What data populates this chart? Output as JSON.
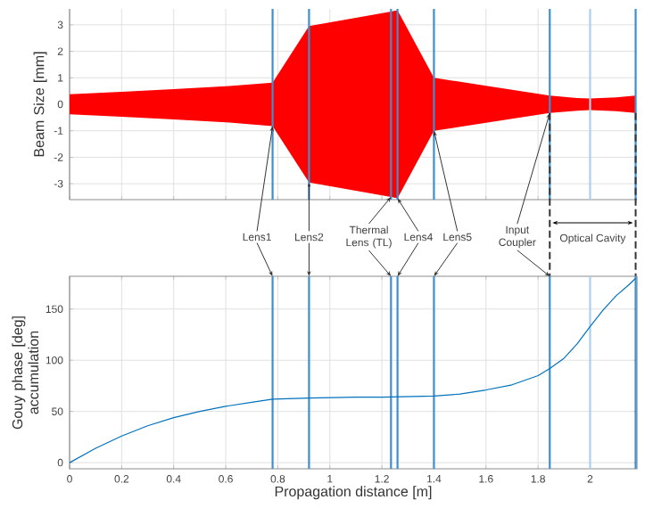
{
  "chart_data": [
    {
      "type": "area",
      "ylabel": "Beam Size [mm]",
      "x": [
        0,
        0.2,
        0.4,
        0.6,
        0.78,
        0.92,
        1.235,
        1.26,
        1.4,
        1.6,
        1.845,
        1.95,
        2.0,
        2.1,
        2.175
      ],
      "series": [
        {
          "color": "#ff0000",
          "values": [
            0.38,
            0.47,
            0.57,
            0.68,
            0.82,
            2.95,
            3.5,
            3.55,
            1.0,
            0.7,
            0.33,
            0.24,
            0.22,
            0.26,
            0.33
          ]
        },
        {
          "color": "#ff0000",
          "values": [
            -0.38,
            -0.47,
            -0.57,
            -0.68,
            -0.82,
            -2.95,
            -3.5,
            -3.55,
            -1.0,
            -0.7,
            -0.33,
            -0.24,
            -0.22,
            -0.26,
            -0.33
          ]
        }
      ],
      "xlim": [
        0,
        2.18
      ],
      "xticks": [
        0,
        0.2,
        0.4,
        0.6,
        0.8,
        1,
        1.2,
        1.4,
        1.6,
        1.8,
        2
      ],
      "ylim": [
        -3.6,
        3.6
      ],
      "yticks": [
        -3,
        -2,
        -1,
        0,
        1,
        2,
        3
      ],
      "tick_labels": "y",
      "grid": true,
      "ref_lines": [
        {
          "axis": "x",
          "value": 0.78,
          "color": "#3d8fd1"
        },
        {
          "axis": "x",
          "value": 0.92,
          "color": "#3d8fd1"
        },
        {
          "axis": "x",
          "value": 1.235,
          "color": "#3d8fd1"
        },
        {
          "axis": "x",
          "value": 1.26,
          "color": "#3d8fd1"
        },
        {
          "axis": "x",
          "value": 1.4,
          "color": "#3d8fd1"
        },
        {
          "axis": "x",
          "value": 1.845,
          "color": "#3d8fd1"
        },
        {
          "axis": "x",
          "value": 2.0,
          "color": "#a9d0ee"
        },
        {
          "axis": "x",
          "value": 2.175,
          "color": "#3d8fd1"
        },
        {
          "axis": "x",
          "value": 1.845,
          "color": "#333333",
          "line_style": "dashed"
        },
        {
          "axis": "x",
          "value": 2.175,
          "color": "#333333",
          "line_style": "dashed"
        }
      ]
    },
    {
      "type": "line",
      "xlabel": "Propagation distance [m]",
      "ylabel": "Gouy phase [deg] accumulation",
      "x": [
        0,
        0.1,
        0.2,
        0.3,
        0.4,
        0.5,
        0.6,
        0.7,
        0.78,
        0.92,
        1.1,
        1.2,
        1.4,
        1.5,
        1.6,
        1.7,
        1.8,
        1.845,
        1.9,
        1.95,
        2.0,
        2.05,
        2.1,
        2.15,
        2.175
      ],
      "series": [
        {
          "color": "#0072bd",
          "values": [
            0,
            14,
            26,
            36,
            44,
            50,
            55,
            59,
            62,
            63,
            64,
            64,
            65,
            67,
            71,
            76,
            85,
            92,
            102,
            116,
            133,
            149,
            163,
            174,
            180
          ]
        }
      ],
      "xlim": [
        0,
        2.18
      ],
      "xticks": [
        0,
        0.2,
        0.4,
        0.6,
        0.8,
        1,
        1.2,
        1.4,
        1.6,
        1.8,
        2
      ],
      "ylim": [
        -6,
        182
      ],
      "yticks": [
        0,
        50,
        100,
        150
      ],
      "grid": true,
      "ref_lines": [
        {
          "axis": "x",
          "value": 0.78,
          "color": "#3d8fd1",
          "label": "Lens1"
        },
        {
          "axis": "x",
          "value": 0.92,
          "color": "#3d8fd1",
          "label": "Lens2"
        },
        {
          "axis": "x",
          "value": 1.235,
          "color": "#3d8fd1",
          "label": "Thermal Lens (TL)"
        },
        {
          "axis": "x",
          "value": 1.26,
          "color": "#3d8fd1",
          "label": "Lens4"
        },
        {
          "axis": "x",
          "value": 1.4,
          "color": "#3d8fd1",
          "label": "Lens5"
        },
        {
          "axis": "x",
          "value": 1.845,
          "color": "#3d8fd1",
          "label": "Input Coupler"
        },
        {
          "axis": "x",
          "value": 2.0,
          "color": "#a9d0ee"
        },
        {
          "axis": "x",
          "value": 2.175,
          "color": "#3d8fd1"
        }
      ],
      "annotations": [
        "Optical Cavity"
      ]
    }
  ]
}
